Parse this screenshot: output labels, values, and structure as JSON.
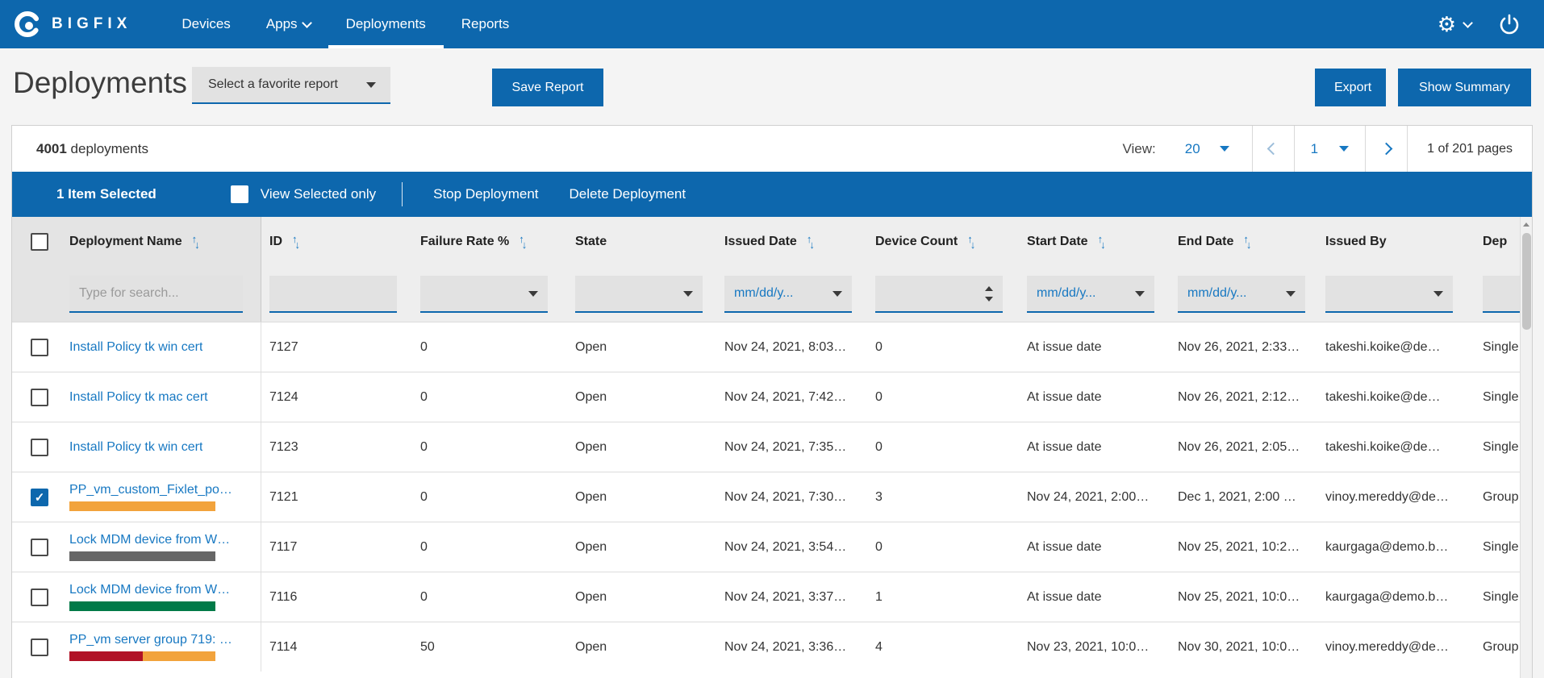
{
  "nav": {
    "brand": "BIGFIX",
    "items": [
      {
        "label": "Devices",
        "caret": false,
        "active": false
      },
      {
        "label": "Apps",
        "caret": true,
        "active": false
      },
      {
        "label": "Deployments",
        "caret": false,
        "active": true
      },
      {
        "label": "Reports",
        "caret": false,
        "active": false
      }
    ]
  },
  "header": {
    "title": "Deployments",
    "favorite_select_value": "Select a favorite report",
    "save_button": "Save Report",
    "export_button": "Export",
    "summary_button": "Show Summary"
  },
  "toolbar": {
    "count": "4001",
    "count_suffix": " deployments",
    "view_label": "View:",
    "view_value": "20",
    "page_value": "1",
    "pages_text": "1 of 201 pages"
  },
  "action_bar": {
    "selected_text": "1 Item Selected",
    "view_selected_label": "View Selected only",
    "stop_label": "Stop Deployment",
    "delete_label": "Delete Deployment"
  },
  "table": {
    "columns": [
      {
        "label": "Deployment Name",
        "sortable": true
      },
      {
        "label": "ID",
        "sortable": true
      },
      {
        "label": "Failure Rate %",
        "sortable": true
      },
      {
        "label": "State",
        "sortable": false
      },
      {
        "label": "Issued Date",
        "sortable": true
      },
      {
        "label": "Device Count",
        "sortable": true
      },
      {
        "label": "Start Date",
        "sortable": true
      },
      {
        "label": "End Date",
        "sortable": true
      },
      {
        "label": "Issued By",
        "sortable": false
      },
      {
        "label": "Dep",
        "sortable": false
      }
    ],
    "filters": {
      "name_placeholder": "Type for search...",
      "date_placeholder": "mm/dd/y..."
    },
    "rows": [
      {
        "name": "Install Policy tk win cert",
        "id": "7127",
        "failure": "0",
        "state": "Open",
        "issued": "Nov 24, 2021, 8:03…",
        "devices": "0",
        "start": "At issue date",
        "end": "Nov 26, 2021, 2:33…",
        "by": "takeshi.koike@de…",
        "type": "Single",
        "selected": false,
        "bar": null
      },
      {
        "name": "Install Policy tk mac cert",
        "id": "7124",
        "failure": "0",
        "state": "Open",
        "issued": "Nov 24, 2021, 7:42…",
        "devices": "0",
        "start": "At issue date",
        "end": "Nov 26, 2021, 2:12…",
        "by": "takeshi.koike@de…",
        "type": "Single",
        "selected": false,
        "bar": null
      },
      {
        "name": "Install Policy tk win cert",
        "id": "7123",
        "failure": "0",
        "state": "Open",
        "issued": "Nov 24, 2021, 7:35…",
        "devices": "0",
        "start": "At issue date",
        "end": "Nov 26, 2021, 2:05…",
        "by": "takeshi.koike@de…",
        "type": "Single",
        "selected": false,
        "bar": null
      },
      {
        "name": "PP_vm_custom_Fixlet_po…",
        "id": "7121",
        "failure": "0",
        "state": "Open",
        "issued": "Nov 24, 2021, 7:30…",
        "devices": "3",
        "start": "Nov 24, 2021, 2:00…",
        "end": "Dec 1, 2021, 2:00 …",
        "by": "vinoy.mereddy@de…",
        "type": "Group",
        "selected": true,
        "bar": {
          "segments": [
            {
              "color": "#f2a33c",
              "pct": 100
            }
          ]
        }
      },
      {
        "name": "Lock MDM device from W…",
        "id": "7117",
        "failure": "0",
        "state": "Open",
        "issued": "Nov 24, 2021, 3:54…",
        "devices": "0",
        "start": "At issue date",
        "end": "Nov 25, 2021, 10:2…",
        "by": "kaurgaga@demo.b…",
        "type": "Single",
        "selected": false,
        "bar": {
          "segments": [
            {
              "color": "#666666",
              "pct": 100
            }
          ]
        }
      },
      {
        "name": "Lock MDM device from W…",
        "id": "7116",
        "failure": "0",
        "state": "Open",
        "issued": "Nov 24, 2021, 3:37…",
        "devices": "1",
        "start": "At issue date",
        "end": "Nov 25, 2021, 10:0…",
        "by": "kaurgaga@demo.b…",
        "type": "Single",
        "selected": false,
        "bar": {
          "segments": [
            {
              "color": "#007a48",
              "pct": 100
            }
          ]
        }
      },
      {
        "name": "PP_vm server group 719: …",
        "id": "7114",
        "failure": "50",
        "state": "Open",
        "issued": "Nov 24, 2021, 3:36…",
        "devices": "4",
        "start": "Nov 23, 2021, 10:0…",
        "end": "Nov 30, 2021, 10:0…",
        "by": "vinoy.mereddy@de…",
        "type": "Group",
        "selected": false,
        "bar": {
          "segments": [
            {
              "color": "#b11226",
              "pct": 50
            },
            {
              "color": "#f2a33c",
              "pct": 50
            }
          ]
        }
      }
    ]
  },
  "colors": {
    "accent_blue": "#0d67ad",
    "link_blue": "#1778c2",
    "bar_orange": "#f2a33c",
    "bar_red": "#b11226",
    "bar_green": "#007a48",
    "bar_gray": "#666666"
  }
}
